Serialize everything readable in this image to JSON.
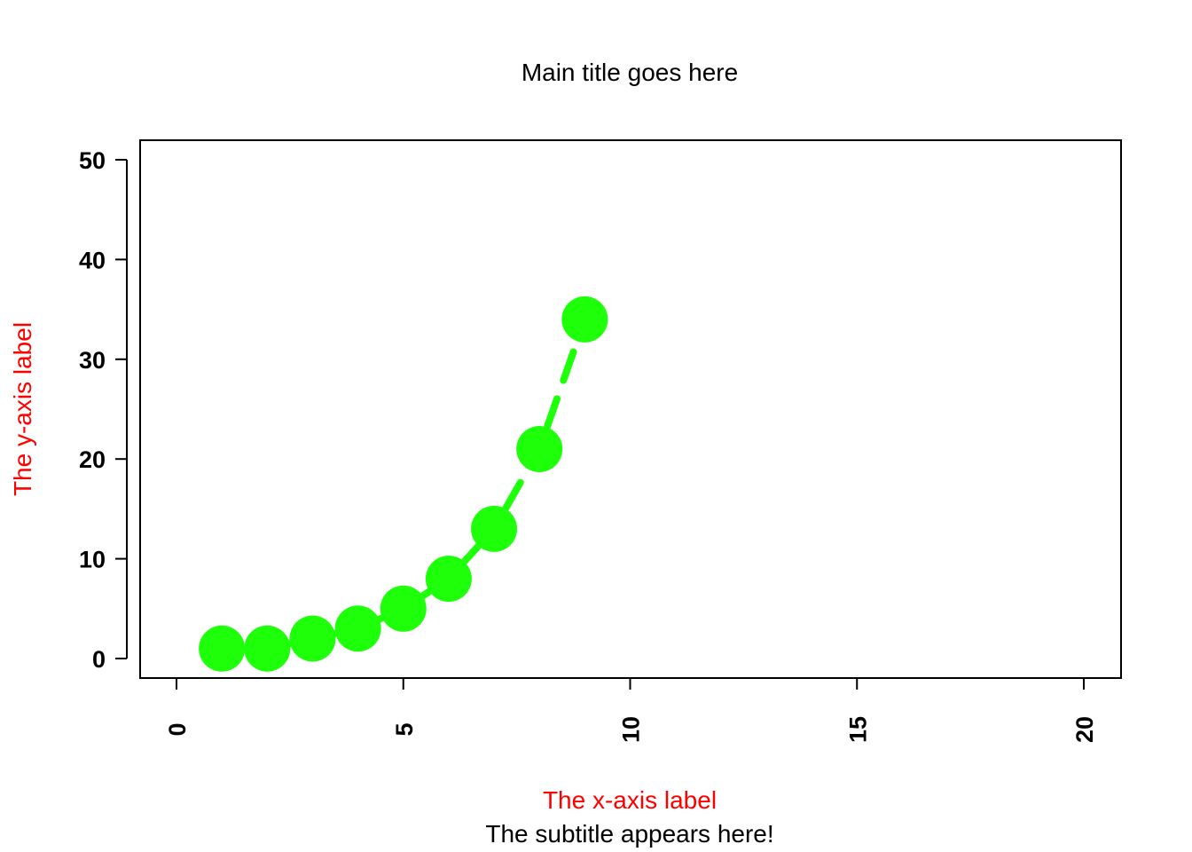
{
  "chart_data": {
    "type": "line",
    "title": "Main title goes here",
    "subtitle": "The subtitle appears here!",
    "xlabel": "The x-axis label",
    "ylabel": "The y-axis label",
    "xlim": [
      0,
      20
    ],
    "ylim": [
      0,
      50
    ],
    "x_ticks": [
      0,
      5,
      10,
      15,
      20
    ],
    "y_ticks": [
      0,
      10,
      20,
      30,
      40,
      50
    ],
    "grid": false,
    "legend": "none",
    "series": [
      {
        "x": [
          1,
          2,
          3,
          4,
          5,
          6,
          7,
          8,
          9
        ],
        "values": [
          1,
          1,
          2,
          3,
          5,
          8,
          13,
          21,
          34
        ],
        "color": "#1EFF0A",
        "line_style": "dashed",
        "marker": "filled-circle"
      }
    ],
    "colors": {
      "axis_labels": "#FF0000",
      "series": "#1EFF0A",
      "text": "#000000"
    }
  }
}
